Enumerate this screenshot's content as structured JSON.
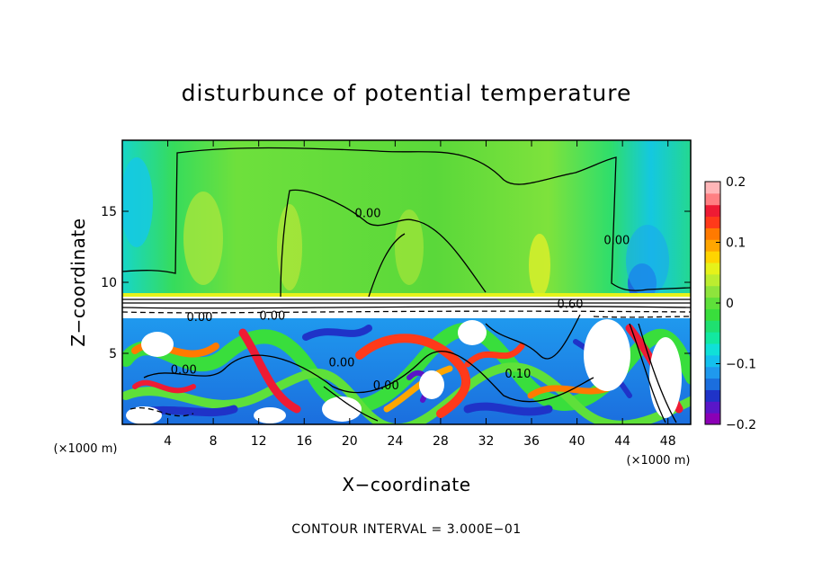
{
  "chart_data": {
    "type": "heatmap",
    "title": "disturbunce of potential temperature",
    "xlabel": "X−coordinate",
    "ylabel": "Z−coordinate",
    "x_unit": "(×1000 m)",
    "z_unit": "(×1000 m)",
    "xlim": [
      0,
      50
    ],
    "ylim": [
      0,
      20
    ],
    "x_ticks": [
      4,
      8,
      12,
      16,
      20,
      24,
      28,
      32,
      36,
      40,
      44,
      48
    ],
    "y_ticks": [
      5,
      10,
      15
    ],
    "x_tick_labels": [
      "4",
      "8",
      "12",
      "16",
      "20",
      "24",
      "28",
      "32",
      "36",
      "40",
      "44",
      "48"
    ],
    "y_tick_labels": [
      "5",
      "10",
      "15"
    ],
    "colorbar": {
      "min": -0.2,
      "max": 0.2,
      "ticks": [
        0.2,
        0.1,
        0,
        -0.1,
        -0.2
      ],
      "tick_labels": [
        "0.2",
        "0.1",
        "0",
        "−0.1",
        "−0.2"
      ],
      "colors": [
        "#8b00b5",
        "#5a16c8",
        "#1f33c8",
        "#1b6ede",
        "#1f99ee",
        "#14c0ee",
        "#10e0d8",
        "#12e8a0",
        "#1fe070",
        "#39de3c",
        "#5ee03a",
        "#8ee43c",
        "#bced30",
        "#e6f21a",
        "#ffd400",
        "#ffa600",
        "#ff7a00",
        "#ff3a1a",
        "#ee1b34",
        "#ff7f82",
        "#ffb6b8"
      ]
    },
    "contour_labels": [
      {
        "text": "0.00",
        "x": 21.6,
        "z": 14.9
      },
      {
        "text": "0.00",
        "x": 43.5,
        "z": 13.0
      },
      {
        "text": "0.60",
        "x": 39.4,
        "z": 8.5
      },
      {
        "text": "0.00",
        "x": 6.8,
        "z": 7.6
      },
      {
        "text": "0.00",
        "x": 13.2,
        "z": 7.7
      },
      {
        "text": "0.00",
        "x": 19.3,
        "z": 4.4
      },
      {
        "text": "0.00",
        "x": 5.4,
        "z": 3.9
      },
      {
        "text": "0.00",
        "x": 23.2,
        "z": 2.8
      },
      {
        "text": "0.10",
        "x": 34.8,
        "z": 3.6
      }
    ],
    "footer": "CONTOUR INTERVAL = 3.000E−01"
  }
}
